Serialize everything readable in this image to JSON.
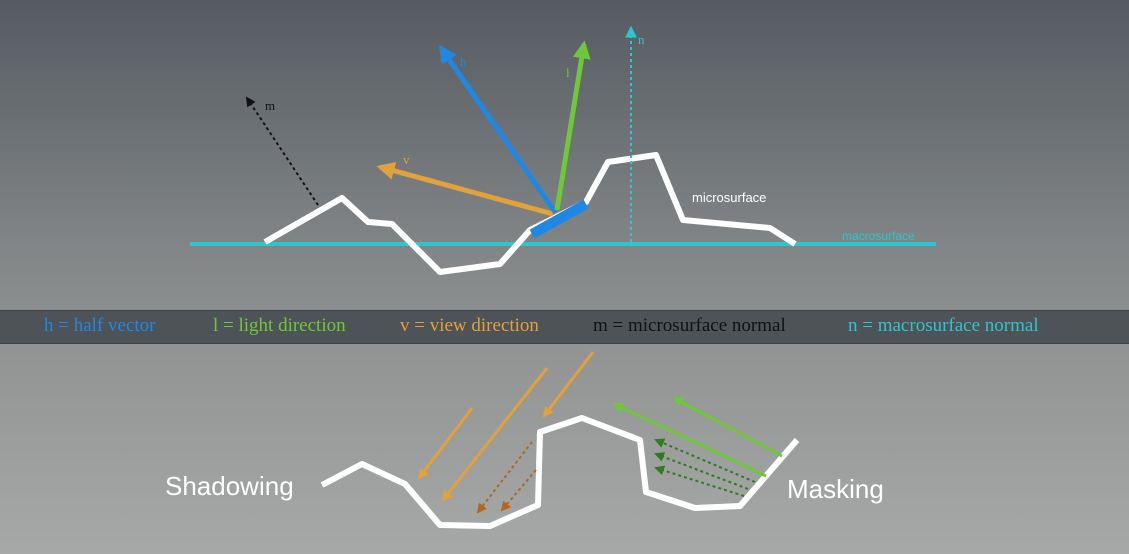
{
  "colors": {
    "half_vector": "#1e88e5",
    "light": "#6fc73a",
    "view": "#e2a13a",
    "micro_normal": "#111111",
    "macro": "#2cc6cf",
    "surface": "#ffffff",
    "dark_view": "#b5651d",
    "dark_light": "#2f7d1d"
  },
  "vector_labels": {
    "h": "h",
    "l": "l",
    "v": "v",
    "m": "m",
    "n": "n"
  },
  "surface_labels": {
    "microsurface": "microsurface",
    "macrosurface": "macrosurface"
  },
  "legend": [
    {
      "text": "h = half vector",
      "color": "#1e88e5"
    },
    {
      "text": "l = light direction",
      "color": "#6fc73a"
    },
    {
      "text": "v = view direction",
      "color": "#e2a13a"
    },
    {
      "text": "m = microsurface normal",
      "color": "#111111"
    },
    {
      "text": "n = macrosurface normal",
      "color": "#2cc6cf"
    }
  ],
  "bottom_labels": {
    "shadowing": "Shadowing",
    "masking": "Masking"
  }
}
